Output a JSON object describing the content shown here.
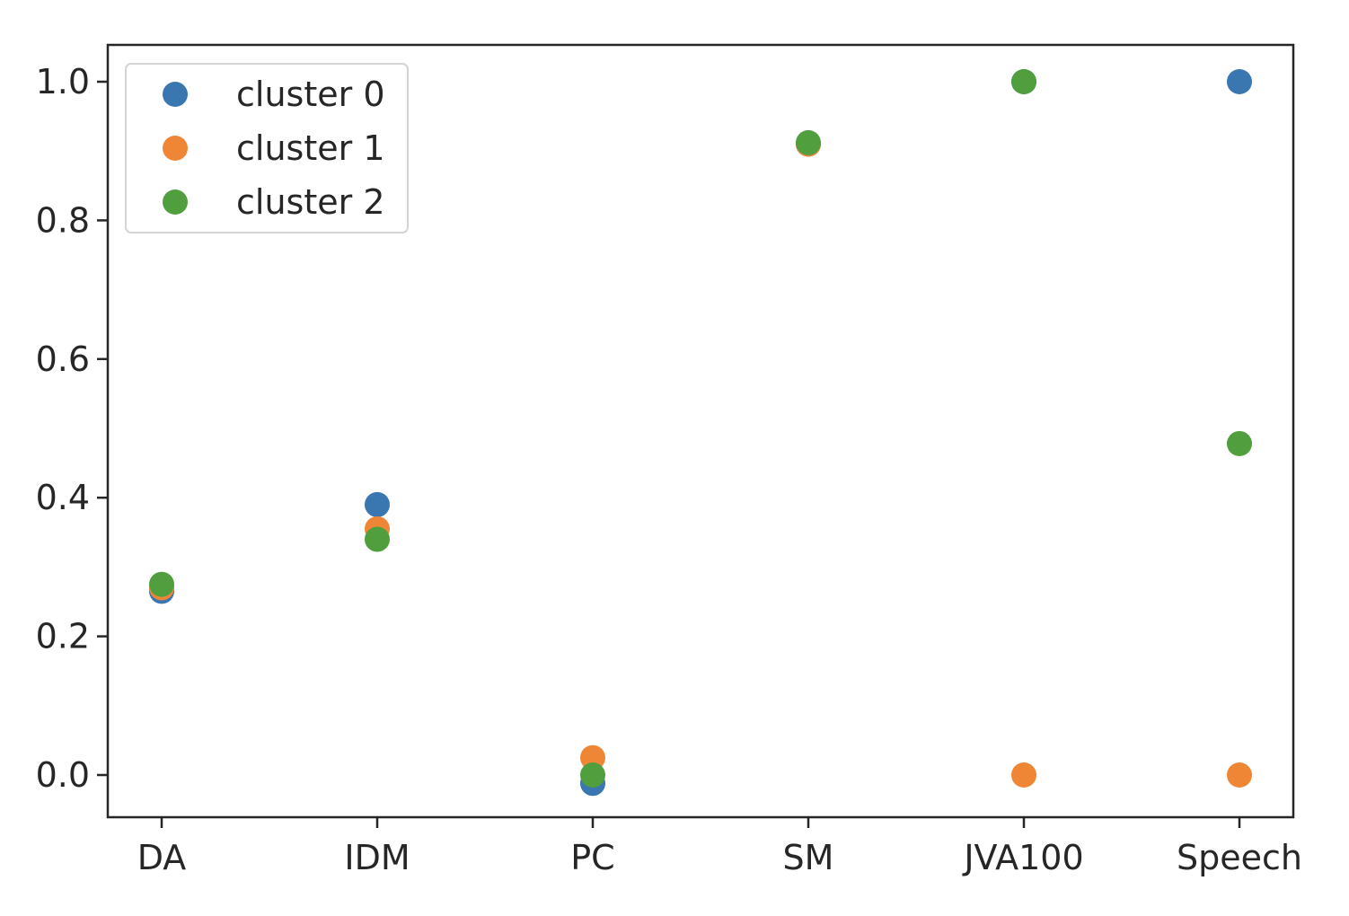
{
  "chart_data": {
    "type": "scatter",
    "categories": [
      "DA",
      "IDM",
      "PC",
      "SM",
      "JVA100",
      "Speech"
    ],
    "ylim": [
      -0.06,
      1.05
    ],
    "yticks": [
      0.0,
      0.2,
      0.4,
      0.6,
      0.8,
      1.0
    ],
    "ytick_labels": [
      "0.0",
      "0.2",
      "0.4",
      "0.6",
      "0.8",
      "1.0"
    ],
    "grid": false,
    "legend_position": "upper-left",
    "series": [
      {
        "name": "cluster 0",
        "color": "#3a76af",
        "values": [
          0.265,
          0.39,
          -0.012,
          0.91,
          1.0,
          1.0
        ]
      },
      {
        "name": "cluster 1",
        "color": "#ef8636",
        "values": [
          0.27,
          0.355,
          0.025,
          0.91,
          0.0,
          0.0
        ]
      },
      {
        "name": "cluster 2",
        "color": "#519e3e",
        "values": [
          0.275,
          0.34,
          0.0,
          0.912,
          1.0,
          0.478
        ]
      }
    ]
  }
}
